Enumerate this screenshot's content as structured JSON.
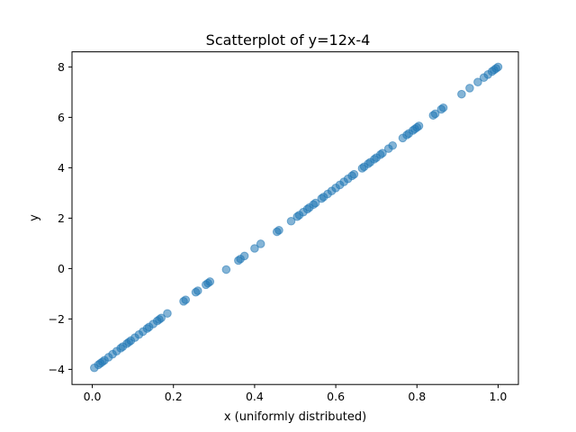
{
  "chart_data": {
    "type": "scatter",
    "title": "Scatterplot of y=12x-4",
    "xlabel": "x (uniformly distributed)",
    "ylabel": "y",
    "xlim": [
      -0.05,
      1.05
    ],
    "ylim": [
      -4.6,
      8.6
    ],
    "x_ticks": [
      0.0,
      0.2,
      0.4,
      0.6,
      0.8,
      1.0
    ],
    "x_tick_labels": [
      "0.0",
      "0.2",
      "0.4",
      "0.6",
      "0.8",
      "1.0"
    ],
    "y_ticks": [
      -4,
      -2,
      0,
      2,
      4,
      6,
      8
    ],
    "y_tick_labels": [
      "−4",
      "−2",
      "0",
      "2",
      "4",
      "6",
      "8"
    ],
    "grid": false,
    "legend": "none",
    "marker_color": "#1f77b4",
    "marker_alpha": 0.55,
    "series": [
      {
        "x": [
          0.005,
          0.015,
          0.02,
          0.025,
          0.03,
          0.04,
          0.05,
          0.06,
          0.07,
          0.075,
          0.085,
          0.09,
          0.095,
          0.105,
          0.115,
          0.125,
          0.135,
          0.14,
          0.15,
          0.16,
          0.165,
          0.17,
          0.185,
          0.225,
          0.23,
          0.255,
          0.26,
          0.28,
          0.285,
          0.29,
          0.33,
          0.36,
          0.365,
          0.375,
          0.4,
          0.415,
          0.455,
          0.46,
          0.49,
          0.505,
          0.51,
          0.52,
          0.53,
          0.535,
          0.545,
          0.55,
          0.565,
          0.57,
          0.58,
          0.59,
          0.6,
          0.61,
          0.62,
          0.63,
          0.64,
          0.645,
          0.665,
          0.67,
          0.68,
          0.685,
          0.695,
          0.7,
          0.71,
          0.715,
          0.73,
          0.74,
          0.765,
          0.775,
          0.78,
          0.79,
          0.795,
          0.8,
          0.805,
          0.84,
          0.845,
          0.86,
          0.865,
          0.91,
          0.93,
          0.95,
          0.965,
          0.975,
          0.985,
          0.99,
          0.995,
          1.0
        ],
        "y": [
          -3.94,
          -3.82,
          -3.76,
          -3.7,
          -3.64,
          -3.52,
          -3.4,
          -3.28,
          -3.16,
          -3.1,
          -2.98,
          -2.92,
          -2.86,
          -2.74,
          -2.62,
          -2.5,
          -2.38,
          -2.32,
          -2.2,
          -2.08,
          -2.02,
          -1.96,
          -1.78,
          -1.3,
          -1.24,
          -0.94,
          -0.88,
          -0.64,
          -0.58,
          -0.52,
          -0.04,
          0.32,
          0.38,
          0.5,
          0.8,
          0.98,
          1.46,
          1.52,
          1.88,
          2.06,
          2.12,
          2.24,
          2.36,
          2.42,
          2.54,
          2.6,
          2.78,
          2.84,
          2.96,
          3.08,
          3.2,
          3.32,
          3.44,
          3.56,
          3.68,
          3.74,
          3.98,
          4.04,
          4.16,
          4.22,
          4.34,
          4.4,
          4.52,
          4.58,
          4.76,
          4.88,
          5.18,
          5.3,
          5.36,
          5.48,
          5.54,
          5.6,
          5.66,
          6.08,
          6.14,
          6.32,
          6.38,
          6.92,
          7.16,
          7.4,
          7.58,
          7.7,
          7.82,
          7.88,
          7.94,
          8.0
        ]
      }
    ]
  }
}
